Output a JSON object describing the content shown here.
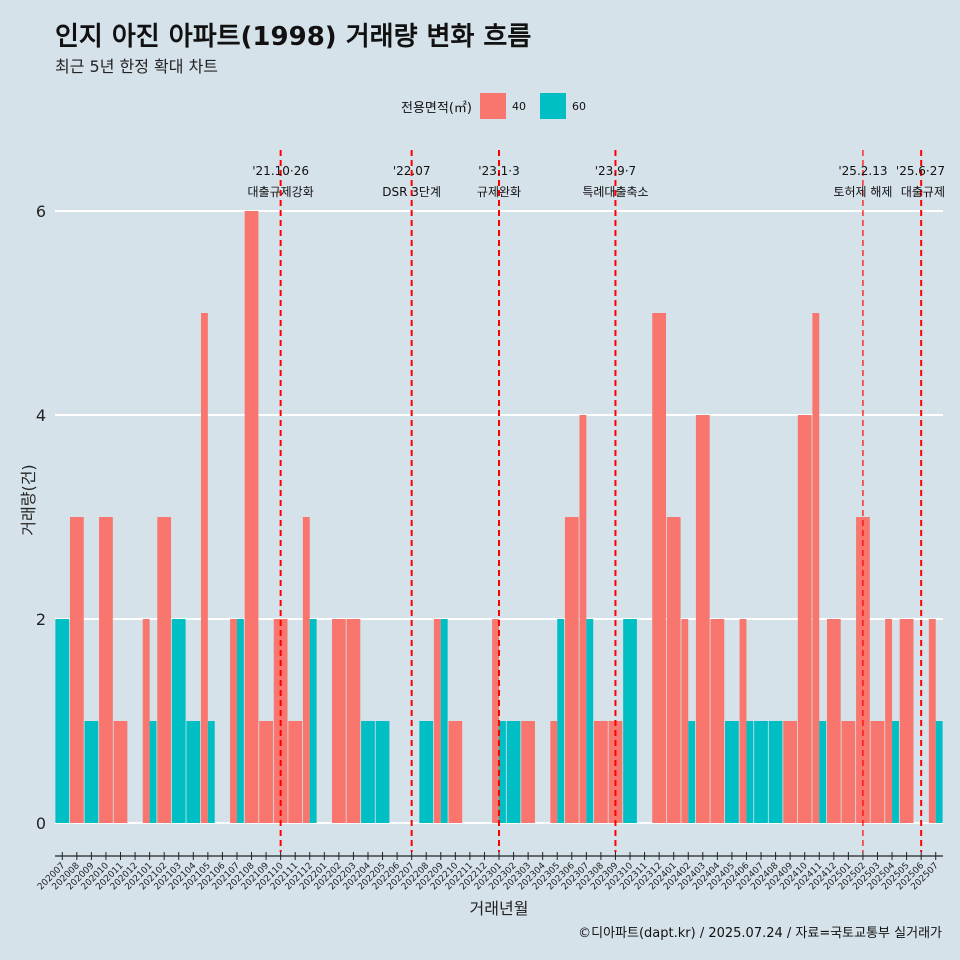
{
  "title": "인지 아진 아파트(1998) 거래량 변화 흐름",
  "subtitle": "최근 5년 한정 확대 차트",
  "caption": "©디아파트(dapt.kr) / 2025.07.24 / 자료=국토교통부 실거래가",
  "legend": {
    "title": "전용면적(㎡)",
    "items": [
      {
        "label": "40",
        "color": "#f8766d"
      },
      {
        "label": "60",
        "color": "#00bfc4"
      }
    ]
  },
  "chart_data": {
    "type": "bar",
    "title": "인지 아진 아파트(1998) 거래량 변화 흐름",
    "xlabel": "거래년월",
    "ylabel": "거래량(건)",
    "ylim": [
      0,
      6.3
    ],
    "yticks": [
      0,
      2,
      4,
      6
    ],
    "grid": true,
    "legend_position": "top",
    "months": [
      "202007",
      "202008",
      "202009",
      "202010",
      "202011",
      "202012",
      "202101",
      "202102",
      "202103",
      "202104",
      "202105",
      "202106",
      "202107",
      "202108",
      "202109",
      "202110",
      "202111",
      "202112",
      "202201",
      "202202",
      "202203",
      "202204",
      "202205",
      "202206",
      "202207",
      "202208",
      "202209",
      "202210",
      "202211",
      "202212",
      "202301",
      "202302",
      "202303",
      "202304",
      "202305",
      "202306",
      "202307",
      "202308",
      "202309",
      "202310",
      "202311",
      "202312",
      "202401",
      "202402",
      "202403",
      "202404",
      "202405",
      "202406",
      "202407",
      "202408",
      "202409",
      "202410",
      "202411",
      "202412",
      "202501",
      "202502",
      "202503",
      "202504",
      "202505",
      "202506",
      "202507"
    ],
    "series": [
      {
        "name": "40",
        "color": "#f8766d",
        "values": [
          0,
          3,
          0,
          3,
          1,
          0,
          2,
          3,
          0,
          0,
          5,
          0,
          2,
          6,
          1,
          2,
          1,
          3,
          0,
          2,
          2,
          0,
          0,
          0,
          0,
          0,
          2,
          1,
          0,
          0,
          2,
          0,
          1,
          0,
          1,
          3,
          4,
          1,
          1,
          0,
          0,
          5,
          3,
          2,
          4,
          2,
          0,
          2,
          0,
          0,
          1,
          4,
          5,
          2,
          1,
          3,
          1,
          2,
          2,
          0,
          2
        ]
      },
      {
        "name": "60",
        "color": "#00bfc4",
        "values": [
          2,
          0,
          1,
          0,
          0,
          0,
          1,
          0,
          2,
          1,
          1,
          0,
          2,
          0,
          0,
          0,
          0,
          2,
          0,
          0,
          0,
          1,
          1,
          0,
          0,
          1,
          2,
          0,
          0,
          0,
          1,
          1,
          0,
          0,
          2,
          0,
          2,
          0,
          0,
          2,
          0,
          0,
          0,
          1,
          0,
          0,
          1,
          1,
          1,
          1,
          0,
          0,
          1,
          0,
          0,
          0,
          0,
          1,
          0,
          0,
          1
        ]
      }
    ],
    "events": [
      {
        "month": "202110",
        "date": "'21.10·26",
        "label": "대출규제강화"
      },
      {
        "month": "202207",
        "date": "'22.07",
        "label": "DSR 3단계"
      },
      {
        "month": "202301",
        "date": "'23.1·3",
        "label": "규제완화"
      },
      {
        "month": "202309",
        "date": "'23.9·7",
        "label": "특례대출축소"
      },
      {
        "month": "202502",
        "date": "'25.2.13",
        "label": "토허제 해제"
      },
      {
        "month": "202506",
        "date": "'25.6·27",
        "label": "대출규제"
      }
    ]
  }
}
